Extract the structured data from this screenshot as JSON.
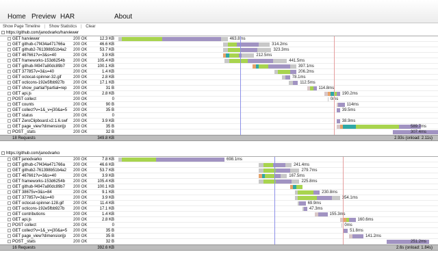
{
  "nav": {
    "tabs": [
      "Home",
      "Preview",
      "HAR",
      "About"
    ]
  },
  "toolbar": {
    "show_timeline": "Show Page Timeline",
    "show_stats": "Show Statistics",
    "clear": "Clear",
    "separator": "|"
  },
  "colors": {
    "blocked": "#c8c8c8",
    "dns": "#2fa8a6",
    "connect": "#e6a36a",
    "send": "#d9c7c7",
    "wait": "#a8d44e",
    "receive": "#a193c2",
    "dom_line": "#8b8fe8",
    "load_line": "#e59d9d"
  },
  "pages": [
    {
      "url": "https://github.com/janodvarko/harviewer",
      "summary": {
        "count": "18 Requests",
        "size": "349.8 KB",
        "load": "2.93s (onload: 2.11s)"
      },
      "requests": [
        {
          "method": "GET",
          "url": "harviewer",
          "status": "200 OK",
          "size": "12.3 KB",
          "time": "463.8ms",
          "start": 0.0,
          "segs": [
            [
              "blocked",
              0.01
            ],
            [
              "wait",
              0.13
            ],
            [
              "receive",
              0.19
            ],
            [
              "blocked",
              0.02
            ]
          ]
        },
        {
          "method": "GET",
          "url": "github-c7f434a471766a",
          "status": "200 OK",
          "size": "46.6 KB",
          "time": "314.2ms",
          "start": 0.335,
          "segs": [
            [
              "blocked",
              0.015
            ],
            [
              "wait",
              0.03
            ],
            [
              "receive",
              0.07
            ],
            [
              "blocked",
              0.035
            ]
          ]
        },
        {
          "method": "GET",
          "url": "github2-761398b51b4a2",
          "status": "200 OK",
          "size": "53.7 KB",
          "time": "323.3ms",
          "start": 0.335,
          "segs": [
            [
              "blocked",
              0.015
            ],
            [
              "wait",
              0.04
            ],
            [
              "receive",
              0.055
            ],
            [
              "blocked",
              0.045
            ]
          ]
        },
        {
          "method": "GET",
          "url": "467661?v=3&s=40",
          "status": "200 OK",
          "size": "3.9 KB",
          "time": "212.5ms",
          "start": 0.335,
          "segs": [
            [
              "connect",
              0.01
            ],
            [
              "dns",
              0.01
            ],
            [
              "wait",
              0.03
            ],
            [
              "receive",
              0.01
            ],
            [
              "blocked",
              0.04
            ]
          ]
        },
        {
          "method": "GET",
          "url": "frameworks-153d6254b",
          "status": "200 OK",
          "size": "105.4 KB",
          "time": "441.5ms",
          "start": 0.34,
          "segs": [
            [
              "blocked",
              0.015
            ],
            [
              "wait",
              0.06
            ],
            [
              "receive",
              0.08
            ],
            [
              "blocked",
              0.045
            ]
          ]
        },
        {
          "method": "GET",
          "url": "github-f4947a80dc89b7",
          "status": "200 OK",
          "size": "100.1 KB",
          "time": "397.1ms",
          "start": 0.43,
          "segs": [
            [
              "connect",
              0.01
            ],
            [
              "dns",
              0.01
            ],
            [
              "wait",
              0.03
            ],
            [
              "receive",
              0.07
            ],
            [
              "blocked",
              0.02
            ]
          ]
        },
        {
          "method": "GET",
          "url": "377857v=3&s=40",
          "status": "200 OK",
          "size": "1.4 KB",
          "time": "206.2ms",
          "start": 0.5,
          "segs": [
            [
              "blocked",
              0.01
            ],
            [
              "wait",
              0.04
            ],
            [
              "receive",
              0.02
            ]
          ]
        },
        {
          "method": "GET",
          "url": "octocat-spinner-32.gif",
          "status": "200 OK",
          "size": "2.8 KB",
          "time": "78.1ms",
          "start": 0.525,
          "segs": [
            [
              "blocked",
              0.01
            ],
            [
              "receive",
              0.015
            ]
          ]
        },
        {
          "method": "GET",
          "url": "octicons-192e5fbb927b",
          "status": "200 OK",
          "size": "17.1 KB",
          "time": "112.5ms",
          "start": 0.545,
          "segs": [
            [
              "blocked",
              0.015
            ],
            [
              "receive",
              0.015
            ]
          ]
        },
        {
          "method": "GET",
          "url": "show_partial?partial=rep",
          "status": "200 OK",
          "size": "31 B",
          "time": "114.8ms",
          "start": 0.605,
          "segs": [
            [
              "send",
              0.01
            ],
            [
              "wait",
              0.01
            ],
            [
              "receive",
              0.01
            ]
          ]
        },
        {
          "method": "GET",
          "url": "api.js",
          "status": "200 OK",
          "size": "2.8 KB",
          "time": "190.2ms",
          "start": 0.66,
          "segs": [
            [
              "send",
              0.01
            ],
            [
              "connect",
              0.01
            ],
            [
              "dns",
              0.01
            ],
            [
              "wait",
              0.01
            ],
            [
              "receive",
              0.01
            ]
          ]
        },
        {
          "method": "POST",
          "url": "collect",
          "status": "200 OK",
          "size": "0",
          "time": "0ms",
          "start": 0.67,
          "segs": [
            [
              "blocked",
              0.003
            ]
          ]
        },
        {
          "method": "GET",
          "url": "counts",
          "status": "200 OK",
          "size": "90 B",
          "time": "114ms",
          "start": 0.7,
          "segs": [
            [
              "send",
              0.005
            ],
            [
              "receive",
              0.02
            ]
          ]
        },
        {
          "method": "GET",
          "url": "collect?v=1&_v=j30&a=5",
          "status": "200 OK",
          "size": "35 B",
          "time": "39.5ms",
          "start": 0.7,
          "segs": [
            [
              "receive",
              0.01
            ]
          ]
        },
        {
          "method": "GET",
          "url": "status",
          "status": "200 OK",
          "size": "0",
          "time": "",
          "start": 0.7,
          "segs": []
        },
        {
          "method": "GET",
          "url": "ZeroClipboard.v2.1.6.swf",
          "status": "200 OK",
          "size": "3.9 KB",
          "time": "38.9ms",
          "start": 0.7,
          "segs": [
            [
              "receive",
              0.01
            ]
          ]
        },
        {
          "method": "GET",
          "url": "page_view?dimension[p",
          "status": "200 OK",
          "size": "35 B",
          "time": "589.7ms",
          "start": 0.7,
          "segs": [
            [
              "send",
              0.01
            ],
            [
              "connect",
              0.01
            ],
            [
              "dns",
              0.04
            ],
            [
              "wait",
              0.14
            ],
            [
              "receive",
              0.07
            ]
          ]
        },
        {
          "method": "POST",
          "url": "_stats",
          "status": "200 OK",
          "size": "32 B",
          "time": "307.4ms",
          "start": 0.88,
          "segs": [
            [
              "receive",
              0.165
            ]
          ]
        }
      ]
    },
    {
      "url": "https://github.com/janodvarko",
      "summary": {
        "count": "16 Requests",
        "size": "392.6 KB",
        "load": "2.6s (onload: 1.84s)"
      },
      "requests": [
        {
          "method": "GET",
          "url": "janodvarko",
          "status": "200 OK",
          "size": "7.8 KB",
          "time": "698.1ms",
          "start": 0.0,
          "segs": [
            [
              "blocked",
              0.01
            ],
            [
              "wait",
              0.11
            ],
            [
              "receive",
              0.22
            ]
          ]
        },
        {
          "method": "GET",
          "url": "github-c7f434a471766a",
          "status": "200 OK",
          "size": "46.6 KB",
          "time": "241.4ms",
          "start": 0.45,
          "segs": [
            [
              "blocked",
              0.015
            ],
            [
              "wait",
              0.03
            ],
            [
              "receive",
              0.04
            ],
            [
              "blocked",
              0.02
            ]
          ]
        },
        {
          "method": "GET",
          "url": "github2-761398b51b4a2",
          "status": "200 OK",
          "size": "53.7 KB",
          "time": "279.7ms",
          "start": 0.45,
          "segs": [
            [
              "blocked",
              0.015
            ],
            [
              "wait",
              0.04
            ],
            [
              "receive",
              0.045
            ],
            [
              "blocked",
              0.03
            ]
          ]
        },
        {
          "method": "GET",
          "url": "467661?v=3&s=40",
          "status": "200 OK",
          "size": "3.9 KB",
          "time": "167.5ms",
          "start": 0.45,
          "segs": [
            [
              "connect",
              0.01
            ],
            [
              "dns",
              0.01
            ],
            [
              "wait",
              0.03
            ],
            [
              "receive",
              0.02
            ],
            [
              "blocked",
              0.02
            ]
          ]
        },
        {
          "method": "GET",
          "url": "frameworks-153d6254b",
          "status": "200 OK",
          "size": "105.4 KB",
          "time": "225.8ms",
          "start": 0.45,
          "segs": [
            [
              "blocked",
              0.015
            ],
            [
              "wait",
              0.04
            ],
            [
              "receive",
              0.05
            ],
            [
              "blocked",
              0.025
            ]
          ]
        },
        {
          "method": "GET",
          "url": "github-f4947a80dc89b7",
          "status": "200 OK",
          "size": "100.1 KB",
          "time": "",
          "start": 0.55,
          "segs": [
            [
              "connect",
              0.01
            ],
            [
              "dns",
              0.01
            ],
            [
              "wait",
              0.02
            ]
          ]
        },
        {
          "method": "GET",
          "url": "38675v=3&s=84",
          "status": "200 OK",
          "size": "9.1 KB",
          "time": "230.8ms",
          "start": 0.565,
          "segs": [
            [
              "blocked",
              0.01
            ],
            [
              "wait",
              0.05
            ],
            [
              "receive",
              0.02
            ]
          ]
        },
        {
          "method": "GET",
          "url": "377857v=3&s=40",
          "status": "200 OK",
          "size": "3.9 KB",
          "time": "354.1ms",
          "start": 0.565,
          "segs": [
            [
              "blocked",
              0.01
            ],
            [
              "wait",
              0.06
            ],
            [
              "receive",
              0.05
            ],
            [
              "blocked",
              0.025
            ]
          ]
        },
        {
          "method": "GET",
          "url": "octocat-spinner-128.gif",
          "status": "200 OK",
          "size": "11.4 KB",
          "time": "69.9ms",
          "start": 0.575,
          "segs": [
            [
              "blocked",
              0.005
            ],
            [
              "receive",
              0.02
            ]
          ]
        },
        {
          "method": "GET",
          "url": "octicons-192e5fbb927b",
          "status": "200 OK",
          "size": "17.1 KB",
          "time": "47.3ms",
          "start": 0.59,
          "segs": [
            [
              "blocked",
              0.005
            ],
            [
              "receive",
              0.01
            ]
          ]
        },
        {
          "method": "GET",
          "url": "contributions",
          "status": "200 OK",
          "size": "1.4 KB",
          "time": "155.3ms",
          "start": 0.63,
          "segs": [
            [
              "send",
              0.01
            ],
            [
              "receive",
              0.03
            ]
          ]
        },
        {
          "method": "GET",
          "url": "api.js",
          "status": "200 OK",
          "size": "2.8 KB",
          "time": "160.6ms",
          "start": 0.71,
          "segs": [
            [
              "send",
              0.01
            ],
            [
              "connect",
              0.01
            ],
            [
              "wait",
              0.01
            ],
            [
              "receive",
              0.02
            ]
          ]
        },
        {
          "method": "POST",
          "url": "collect",
          "status": "200 OK",
          "size": "0",
          "time": "0ms",
          "start": 0.715,
          "segs": [
            [
              "blocked",
              0.003
            ]
          ]
        },
        {
          "method": "GET",
          "url": "collect?v=1&_v=j30&a=5",
          "status": "200 OK",
          "size": "35 B",
          "time": "51.8ms",
          "start": 0.72,
          "segs": [
            [
              "receive",
              0.015
            ]
          ]
        },
        {
          "method": "GET",
          "url": "page_view?dimension[p",
          "status": "200 OK",
          "size": "35 B",
          "time": "141.2ms",
          "start": 0.74,
          "segs": [
            [
              "send",
              0.01
            ],
            [
              "receive",
              0.035
            ]
          ]
        },
        {
          "method": "POST",
          "url": "_stats",
          "status": "200 OK",
          "size": "32 B",
          "time": "251.2ms",
          "start": 0.86,
          "segs": [
            [
              "receive",
              0.135
            ]
          ]
        }
      ]
    }
  ]
}
